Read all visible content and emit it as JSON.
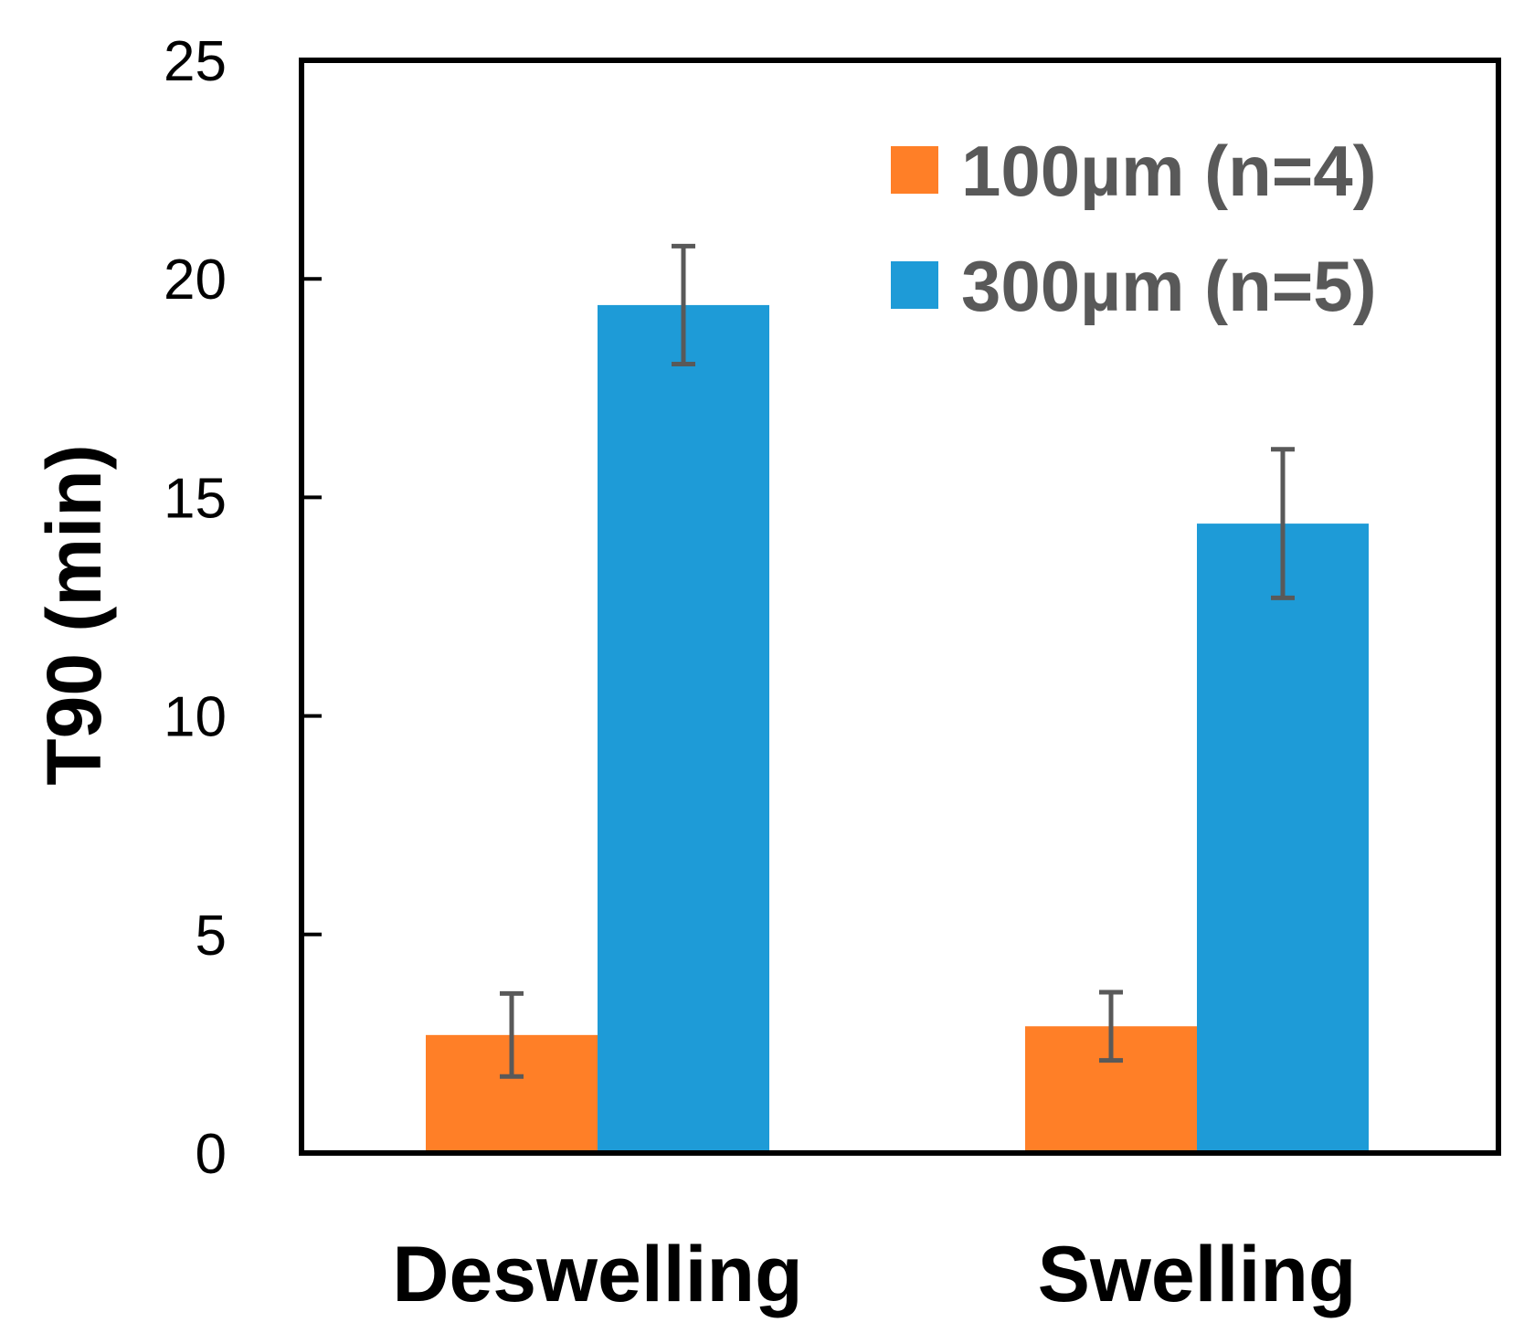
{
  "chart_data": {
    "type": "bar",
    "title": "",
    "xlabel": "",
    "ylabel": "T90 (min)",
    "ylim": [
      0,
      25
    ],
    "yticks": [
      "0",
      "5",
      "10",
      "15",
      "20",
      "25"
    ],
    "categories": [
      "Deswelling",
      "Swelling"
    ],
    "series": [
      {
        "name": "100µm (n=4)",
        "color": "#FF7F27",
        "values": [
          2.7,
          2.9
        ],
        "errors": [
          0.95,
          0.78
        ]
      },
      {
        "name": "300µm (n=5)",
        "color": "#1E9BD7",
        "values": [
          19.4,
          14.4
        ],
        "errors": [
          1.35,
          1.7
        ]
      }
    ],
    "legend_position": "top-right",
    "grid": false
  },
  "colors": {
    "axis": "#000000",
    "error_bar": "#595959",
    "legend_text": "#595959"
  }
}
